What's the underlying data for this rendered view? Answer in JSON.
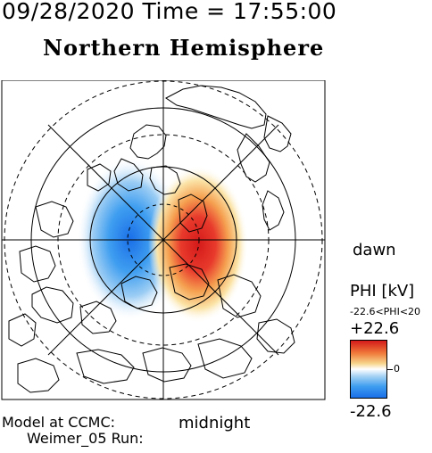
{
  "header": {
    "timestamp": "09/28/2020 Time = 17:55:00",
    "title": "Northern Hemisphere"
  },
  "labels": {
    "dawn": "dawn",
    "midnight": "midnight"
  },
  "colorbar": {
    "title": "PHI [kV]",
    "range_text": "-22.6<PHI<20",
    "max_label": "+22.6",
    "zero_label": "0",
    "min_label": "-22.6",
    "colors": {
      "positive": "#d41a1a",
      "mid": "#ffffff",
      "negative": "#1a6fe8"
    }
  },
  "footer": {
    "model_line": "Model at CCMC:",
    "run_line": "Weimer_05 Run:"
  }
}
